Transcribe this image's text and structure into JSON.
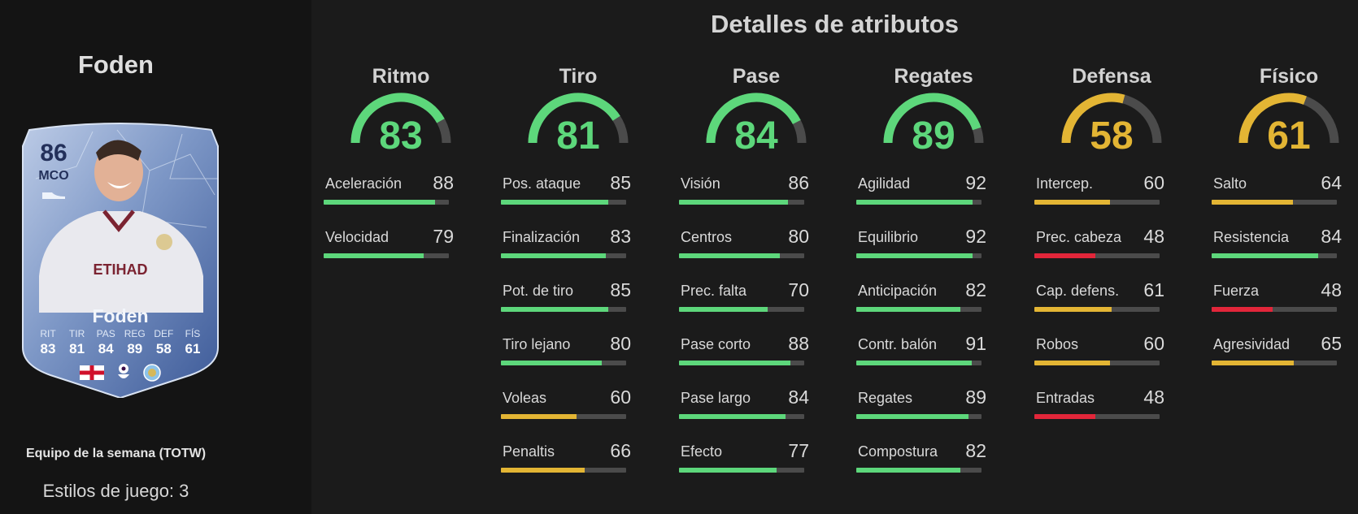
{
  "player": {
    "name": "Foden",
    "card_name": "Foden",
    "rating": "86",
    "position": "MCO",
    "card_type": "Equipo de la semana (TOTW)",
    "playstyles": "Estilos de juego: 3",
    "stats": [
      {
        "label": "RIT",
        "value": "83"
      },
      {
        "label": "TIR",
        "value": "81"
      },
      {
        "label": "PAS",
        "value": "84"
      },
      {
        "label": "REG",
        "value": "89"
      },
      {
        "label": "DEF",
        "value": "58"
      },
      {
        "label": "FÍS",
        "value": "61"
      }
    ],
    "icons": [
      "england-flag-icon",
      "premier-league-icon",
      "manchester-city-badge-icon"
    ]
  },
  "section_title": "Detalles de atributos",
  "colors": {
    "green": "#5dd77b",
    "yellow": "#e3b534",
    "red": "#e2263a",
    "track": "#4b4b4b"
  },
  "categories": [
    {
      "name": "Ritmo",
      "value": "83",
      "attributes": [
        {
          "name": "Aceleración",
          "value": "88"
        },
        {
          "name": "Velocidad",
          "value": "79"
        }
      ]
    },
    {
      "name": "Tiro",
      "value": "81",
      "attributes": [
        {
          "name": "Pos. ataque",
          "value": "85"
        },
        {
          "name": "Finalización",
          "value": "83"
        },
        {
          "name": "Pot. de tiro",
          "value": "85"
        },
        {
          "name": "Tiro lejano",
          "value": "80"
        },
        {
          "name": "Voleas",
          "value": "60"
        },
        {
          "name": "Penaltis",
          "value": "66"
        }
      ]
    },
    {
      "name": "Pase",
      "value": "84",
      "attributes": [
        {
          "name": "Visión",
          "value": "86"
        },
        {
          "name": "Centros",
          "value": "80"
        },
        {
          "name": "Prec. falta",
          "value": "70"
        },
        {
          "name": "Pase corto",
          "value": "88"
        },
        {
          "name": "Pase largo",
          "value": "84"
        },
        {
          "name": "Efecto",
          "value": "77"
        }
      ]
    },
    {
      "name": "Regates",
      "value": "89",
      "attributes": [
        {
          "name": "Agilidad",
          "value": "92"
        },
        {
          "name": "Equilibrio",
          "value": "92"
        },
        {
          "name": "Anticipación",
          "value": "82"
        },
        {
          "name": "Contr. balón",
          "value": "91"
        },
        {
          "name": "Regates",
          "value": "89"
        },
        {
          "name": "Compostura",
          "value": "82"
        }
      ]
    },
    {
      "name": "Defensa",
      "value": "58",
      "attributes": [
        {
          "name": "Intercep.",
          "value": "60"
        },
        {
          "name": "Prec. cabeza",
          "value": "48"
        },
        {
          "name": "Cap. defens.",
          "value": "61"
        },
        {
          "name": "Robos",
          "value": "60"
        },
        {
          "name": "Entradas",
          "value": "48"
        }
      ]
    },
    {
      "name": "Físico",
      "value": "61",
      "attributes": [
        {
          "name": "Salto",
          "value": "64"
        },
        {
          "name": "Resistencia",
          "value": "84"
        },
        {
          "name": "Fuerza",
          "value": "48"
        },
        {
          "name": "Agresividad",
          "value": "65"
        }
      ]
    }
  ]
}
